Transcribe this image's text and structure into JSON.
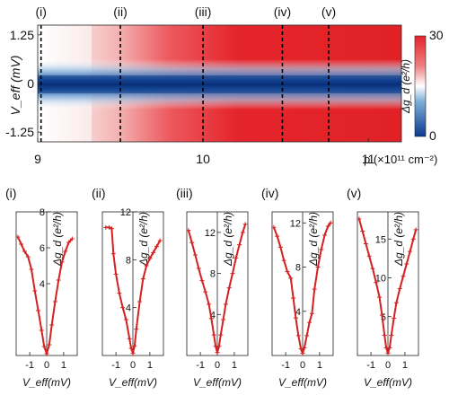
{
  "heatmap": {
    "markers": [
      {
        "label": "(i)",
        "x": 9.02
      },
      {
        "label": "(ii)",
        "x": 9.5
      },
      {
        "label": "(iii)",
        "x": 10.0
      },
      {
        "label": "(iv)",
        "x": 10.48
      },
      {
        "label": "(v)",
        "x": 10.76
      }
    ],
    "y_label": "V_eff (mV)",
    "y_ticks": [
      "1.25",
      "0",
      "-1.25"
    ],
    "x_ticks": [
      "9",
      "10",
      "11"
    ],
    "x_label": "p (×10¹¹ cm⁻²)",
    "colorbar": {
      "label": "Δg_d (e²/h)",
      "ticks": [
        "30",
        "0"
      ],
      "min_color": "#0a3a8f",
      "mid_color": "#ffffff",
      "max_color": "#e4242b"
    }
  },
  "chart_data": [
    {
      "type": "heatmap",
      "x": [
        9,
        11.2
      ],
      "y": [
        -1.5,
        1.5
      ],
      "xlim": [
        9,
        11.2
      ],
      "ylim": [
        -1.5,
        1.5
      ],
      "zlim": [
        0,
        30
      ]
    },
    {
      "type": "scatter",
      "panel": "(i)",
      "xlabel": "V_eff(mV)",
      "ylabel": "Δg_d (e²/h)",
      "xlim": [
        -1.8,
        1.8
      ],
      "ylim": [
        0,
        8
      ],
      "yticks": [
        4,
        6,
        8
      ],
      "xticks": [
        -1,
        0,
        1
      ],
      "x": [
        -1.7,
        -1.5,
        -1.3,
        -1.1,
        -0.9,
        -0.7,
        -0.5,
        -0.3,
        -0.15,
        0,
        0.15,
        0.3,
        0.5,
        0.7,
        0.9,
        1.1,
        1.3,
        1.5
      ],
      "y": [
        6.6,
        6.2,
        5.8,
        5.5,
        4.8,
        3.6,
        2.5,
        1.4,
        0.5,
        0.1,
        0.6,
        1.7,
        3.0,
        4.2,
        5.2,
        5.8,
        6.3,
        6.5
      ]
    },
    {
      "type": "scatter",
      "panel": "(ii)",
      "xlabel": "V_eff(mV)",
      "ylabel": "Δg_d (e²/h)",
      "xlim": [
        -1.8,
        1.8
      ],
      "ylim": [
        0,
        12
      ],
      "yticks": [
        4,
        8,
        12
      ],
      "xticks": [
        -1,
        0,
        1
      ],
      "x": [
        -1.6,
        -1.4,
        -1.25,
        -1.15,
        -1.0,
        -0.8,
        -0.6,
        -0.4,
        -0.2,
        -0.1,
        0,
        0.1,
        0.2,
        0.4,
        0.6,
        0.8,
        1.0,
        1.2,
        1.4,
        1.6
      ],
      "y": [
        10.7,
        10.7,
        10.6,
        8.5,
        6.8,
        5.2,
        4.0,
        3.0,
        1.4,
        0.6,
        0.2,
        0.8,
        2.2,
        4.5,
        6.4,
        7.5,
        8.1,
        8.6,
        9.1,
        9.6
      ]
    },
    {
      "type": "scatter",
      "panel": "(iii)",
      "xlabel": "V_eff(mV)",
      "ylabel": "Δg_d (e²/h)",
      "xlim": [
        -1.8,
        1.8
      ],
      "ylim": [
        0,
        14
      ],
      "yticks": [
        4,
        8,
        12
      ],
      "xticks": [
        -1,
        0,
        1
      ],
      "x": [
        -1.7,
        -1.5,
        -1.3,
        -1.1,
        -0.9,
        -0.7,
        -0.5,
        -0.35,
        -0.2,
        -0.1,
        0,
        0.1,
        0.2,
        0.35,
        0.5,
        0.7,
        0.9,
        1.1,
        1.3,
        1.5,
        1.65
      ],
      "y": [
        12.2,
        11.0,
        9.8,
        8.5,
        7.3,
        6.2,
        5.0,
        3.6,
        2.0,
        0.9,
        0.3,
        0.9,
        2.0,
        3.5,
        5.0,
        6.6,
        8.0,
        9.5,
        10.8,
        12.0,
        12.8
      ]
    },
    {
      "type": "scatter",
      "panel": "(iv)",
      "xlabel": "V_eff(mV)",
      "ylabel": "Δg_d (e²/h)",
      "xlim": [
        -1.8,
        1.8
      ],
      "ylim": [
        0,
        13
      ],
      "yticks": [
        4,
        8,
        12
      ],
      "xticks": [
        -1,
        0,
        1
      ],
      "x": [
        -1.7,
        -1.5,
        -1.3,
        -1.1,
        -0.9,
        -0.7,
        -0.55,
        -0.4,
        -0.25,
        -0.1,
        0,
        0.1,
        0.25,
        0.4,
        0.55,
        0.7,
        0.9,
        1.1,
        1.3,
        1.5,
        1.65
      ],
      "y": [
        11.6,
        10.8,
        9.8,
        8.6,
        7.6,
        7.0,
        5.2,
        3.4,
        1.8,
        0.6,
        0.2,
        0.7,
        1.8,
        3.0,
        3.8,
        6.0,
        8.0,
        9.6,
        10.9,
        11.7,
        12.0
      ]
    },
    {
      "type": "scatter",
      "panel": "(v)",
      "xlabel": "V_eff(mV)",
      "ylabel": "Δg_d (e²/h)",
      "xlim": [
        -1.8,
        1.8
      ],
      "ylim": [
        0,
        18.5
      ],
      "yticks": [
        5,
        10,
        15
      ],
      "xticks": [
        -1,
        0,
        1
      ],
      "x": [
        -1.7,
        -1.5,
        -1.3,
        -1.1,
        -0.9,
        -0.7,
        -0.5,
        -0.35,
        -0.2,
        -0.1,
        0,
        0.1,
        0.2,
        0.35,
        0.5,
        0.7,
        0.9,
        1.1,
        1.3,
        1.5,
        1.65
      ],
      "y": [
        17.6,
        16.0,
        14.4,
        12.8,
        11.2,
        9.4,
        7.5,
        5.2,
        2.6,
        1.0,
        0.3,
        1.0,
        2.6,
        4.8,
        6.8,
        8.6,
        10.2,
        11.8,
        13.4,
        15.0,
        16.2
      ]
    }
  ]
}
